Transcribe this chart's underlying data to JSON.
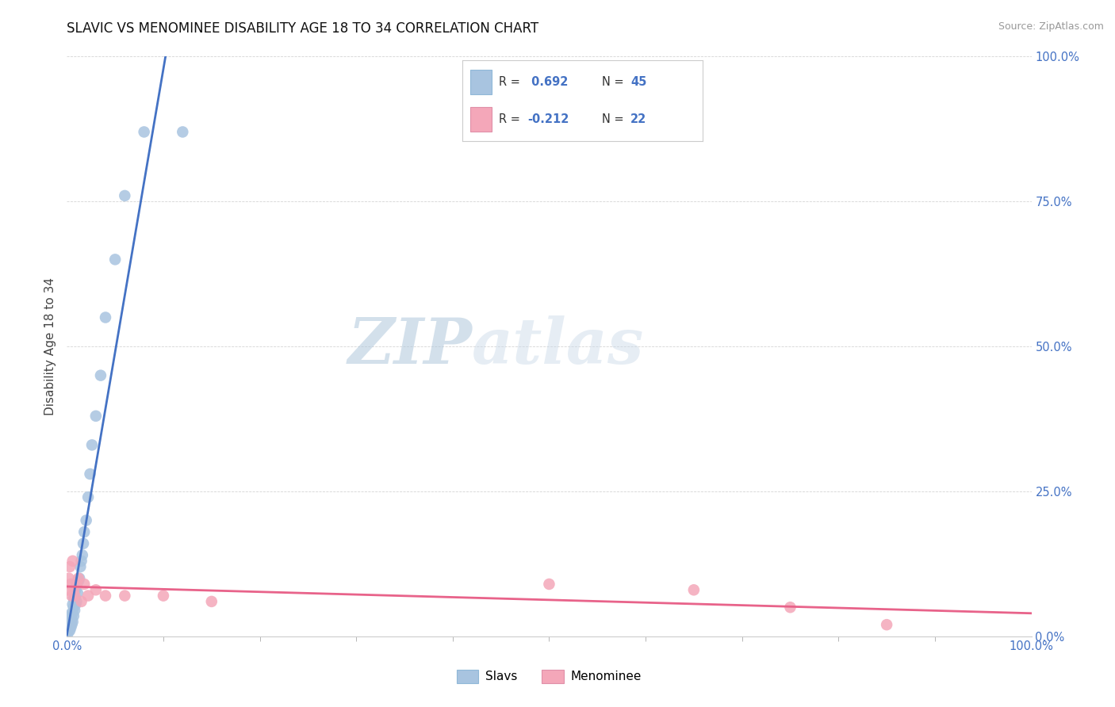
{
  "title": "SLAVIC VS MENOMINEE DISABILITY AGE 18 TO 34 CORRELATION CHART",
  "source": "Source: ZipAtlas.com",
  "ylabel": "Disability Age 18 to 34",
  "xlim": [
    0.0,
    1.0
  ],
  "ylim": [
    0.0,
    1.0
  ],
  "xticks_major": [
    0.0,
    1.0
  ],
  "xticks_minor": [
    0.1,
    0.2,
    0.3,
    0.4,
    0.5,
    0.6,
    0.7,
    0.8,
    0.9
  ],
  "yticks_major": [
    0.0,
    0.25,
    0.5,
    0.75,
    1.0
  ],
  "xticklabels": [
    "0.0%",
    "100.0%"
  ],
  "yticklabels": [
    "0.0%",
    "25.0%",
    "50.0%",
    "75.0%",
    "100.0%"
  ],
  "slavs_x": [
    0.001,
    0.001,
    0.002,
    0.002,
    0.002,
    0.003,
    0.003,
    0.003,
    0.004,
    0.004,
    0.004,
    0.005,
    0.005,
    0.005,
    0.006,
    0.006,
    0.006,
    0.007,
    0.007,
    0.007,
    0.008,
    0.008,
    0.009,
    0.009,
    0.01,
    0.01,
    0.011,
    0.012,
    0.013,
    0.014,
    0.015,
    0.016,
    0.017,
    0.018,
    0.02,
    0.022,
    0.024,
    0.026,
    0.03,
    0.035,
    0.04,
    0.05,
    0.06,
    0.08,
    0.12
  ],
  "slavs_y": [
    0.005,
    0.01,
    0.01,
    0.015,
    0.02,
    0.01,
    0.02,
    0.03,
    0.015,
    0.025,
    0.035,
    0.02,
    0.03,
    0.04,
    0.025,
    0.04,
    0.055,
    0.035,
    0.05,
    0.065,
    0.045,
    0.065,
    0.055,
    0.08,
    0.06,
    0.09,
    0.075,
    0.095,
    0.1,
    0.12,
    0.13,
    0.14,
    0.16,
    0.18,
    0.2,
    0.24,
    0.28,
    0.33,
    0.38,
    0.45,
    0.55,
    0.65,
    0.76,
    0.87,
    0.87
  ],
  "menominee_x": [
    0.001,
    0.002,
    0.003,
    0.004,
    0.005,
    0.006,
    0.007,
    0.008,
    0.01,
    0.012,
    0.015,
    0.018,
    0.022,
    0.03,
    0.04,
    0.06,
    0.1,
    0.15,
    0.5,
    0.65,
    0.75,
    0.85
  ],
  "menominee_y": [
    0.08,
    0.1,
    0.12,
    0.09,
    0.07,
    0.13,
    0.08,
    0.07,
    0.09,
    0.1,
    0.06,
    0.09,
    0.07,
    0.08,
    0.07,
    0.07,
    0.07,
    0.06,
    0.09,
    0.08,
    0.05,
    0.02
  ],
  "slavs_color": "#a8c4e0",
  "menominee_color": "#f4a7b9",
  "slavs_line_color": "#4472c4",
  "menominee_line_color": "#e8638a",
  "slavs_R": 0.692,
  "slavs_N": 45,
  "menominee_R": -0.212,
  "menominee_N": 22,
  "legend_slavs": "Slavs",
  "legend_menominee": "Menominee",
  "watermark_zip": "ZIP",
  "watermark_atlas": "atlas",
  "background_color": "#ffffff",
  "grid_color": "#d5d5d5",
  "title_fontsize": 12,
  "axis_label_color": "#4472c4"
}
